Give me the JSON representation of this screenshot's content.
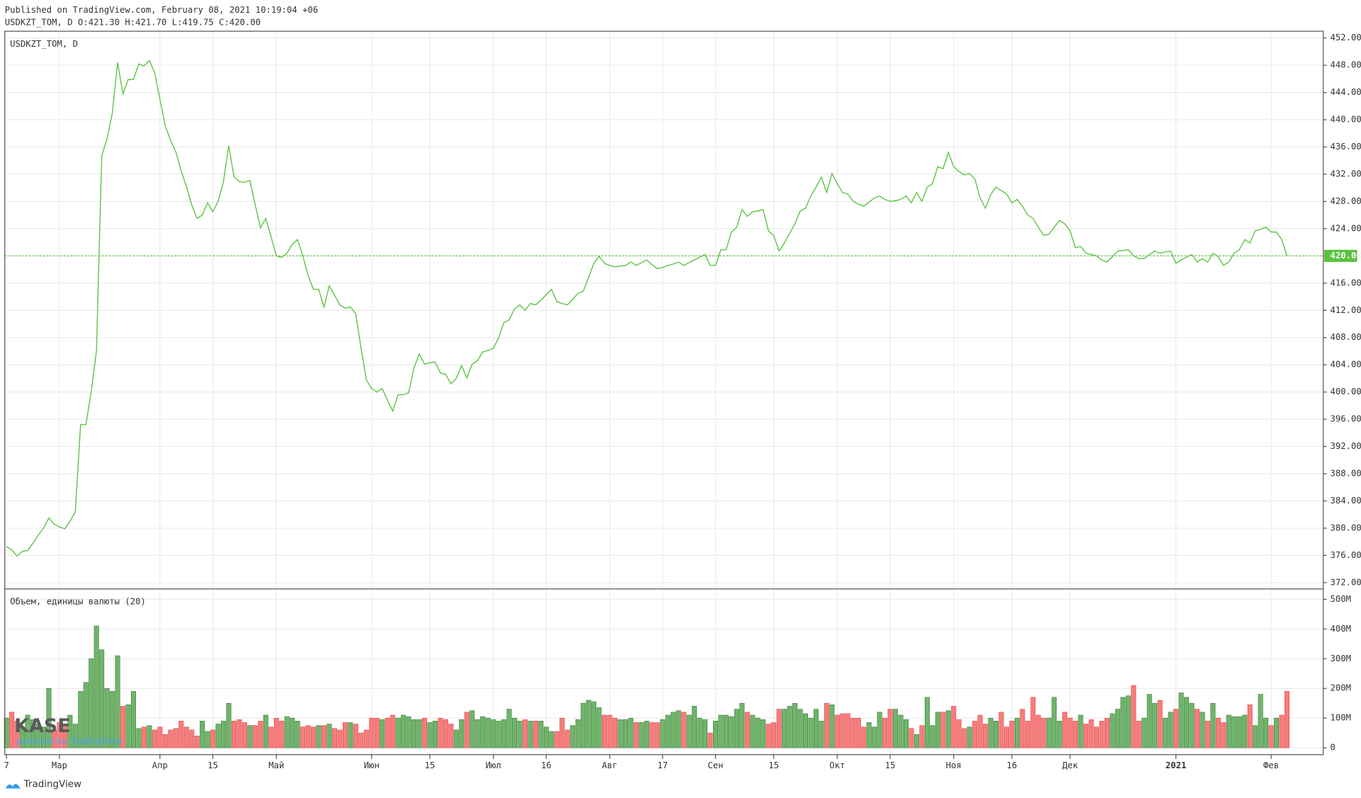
{
  "header": {
    "published": "Published on TradingView.com, February 08, 2021 10:19:04 +06",
    "ohlc": "USDKZT_TOM, D O:421.30 H:421.70 L:419.75 C:420.00"
  },
  "watermark": {
    "logo": "KASE",
    "powered": "powered by TradingView"
  },
  "footer": "TradingView",
  "chart_data": [
    {
      "type": "line",
      "legend": "USDKZT_TOM, D",
      "color": "#58c23f",
      "grid": true,
      "categories": [
        "7",
        null,
        null,
        null,
        null,
        null,
        null,
        null,
        null,
        null,
        "Мар",
        null,
        null,
        null,
        null,
        null,
        null,
        null,
        null,
        null,
        null,
        null,
        null,
        null,
        null,
        null,
        null,
        null,
        null,
        "Апр",
        null,
        null,
        null,
        null,
        null,
        null,
        null,
        null,
        null,
        "15",
        null,
        null,
        null,
        null,
        null,
        null,
        null,
        null,
        null,
        null,
        null,
        "Май",
        null,
        null,
        null,
        null,
        null,
        null,
        null,
        null,
        null,
        null,
        null,
        null,
        null,
        null,
        null,
        null,
        null,
        "Июн",
        null,
        null,
        null,
        null,
        null,
        null,
        null,
        null,
        null,
        null,
        "15",
        null,
        null,
        null,
        null,
        null,
        null,
        null,
        null,
        null,
        null,
        null,
        "Июл",
        null,
        null,
        null,
        null,
        null,
        null,
        null,
        null,
        null,
        "16",
        null,
        null,
        null,
        null,
        null,
        null,
        null,
        null,
        null,
        null,
        null,
        "Авг",
        null,
        null,
        null,
        null,
        null,
        null,
        null,
        null,
        null,
        "17",
        null,
        null,
        null,
        null,
        null,
        null,
        null,
        null,
        null,
        "Сен",
        null,
        null,
        null,
        null,
        null,
        null,
        null,
        null,
        null,
        null,
        "15",
        null,
        null,
        null,
        null,
        null,
        null,
        null,
        null,
        null,
        null,
        null,
        "Окт",
        null,
        null,
        null,
        null,
        null,
        null,
        null,
        null,
        null,
        "15",
        null,
        null,
        null,
        null,
        null,
        null,
        null,
        null,
        null,
        null,
        null,
        "Ноя",
        null,
        null,
        null,
        null,
        null,
        null,
        null,
        null,
        null,
        null,
        "16",
        null,
        null,
        null,
        null,
        null,
        null,
        null,
        null,
        null,
        null,
        "Дек",
        null,
        null,
        null,
        null,
        null,
        null,
        null,
        null,
        null,
        null,
        null,
        null,
        null,
        null,
        null,
        null,
        null,
        null,
        null,
        "2021",
        null,
        null,
        null,
        null,
        null,
        null,
        null,
        null,
        null,
        null,
        null,
        null,
        null,
        null,
        null,
        null,
        null,
        "Фев",
        null,
        null,
        null
      ],
      "values": [
        377.3,
        376.8,
        375.9,
        376.6,
        376.7,
        377.8,
        379,
        380,
        381.5,
        380.6,
        380.2,
        379.9,
        381,
        382.4,
        395.2,
        395.2,
        400,
        406,
        434.7,
        437.2,
        441,
        448.4,
        443.8,
        445.9,
        445.9,
        448.2,
        447.9,
        448.7,
        446.9,
        443,
        439.1,
        437,
        435.3,
        432.5,
        430.2,
        427.5,
        425.5,
        426,
        427.8,
        426.5,
        428,
        430.9,
        436.2,
        431.6,
        430.9,
        430.8,
        431.1,
        427.5,
        424.1,
        425.5,
        422.8,
        420,
        419.8,
        420.4,
        421.7,
        422.4,
        420,
        417.1,
        415.1,
        415.1,
        412.5,
        415.6,
        414.2,
        412.8,
        412.3,
        412.5,
        411.5,
        406.5,
        401.8,
        400.5,
        400,
        400.5,
        398.8,
        397.2,
        399.6,
        399.6,
        399.9,
        403.5,
        405.6,
        404.1,
        404.3,
        404.4,
        402.8,
        402.6,
        401.2,
        402,
        403.9,
        402.1,
        404.1,
        404.6,
        405.9,
        406.1,
        406.4,
        408,
        410.2,
        410.6,
        412.2,
        412.8,
        412,
        413,
        412.8,
        413.5,
        414.3,
        415.1,
        413.3,
        413,
        412.8,
        413.6,
        414.5,
        414.8,
        416.8,
        418.9,
        419.9,
        418.9,
        418.6,
        418.4,
        418.5,
        418.6,
        419.1,
        418.6,
        419,
        419.4,
        418.7,
        418.1,
        418.3,
        418.6,
        418.8,
        419.1,
        418.6,
        419,
        419.4,
        419.8,
        420.2,
        418.6,
        418.6,
        420.9,
        420.9,
        423.5,
        424.2,
        426.8,
        425.8,
        426.5,
        426.6,
        426.8,
        423.7,
        423,
        420.7,
        421.9,
        423.3,
        424.7,
        426.6,
        427,
        428.8,
        430.1,
        431.6,
        429.3,
        432.1,
        430.6,
        429.3,
        429.1,
        428,
        427.6,
        427.3,
        427.9,
        428.5,
        428.8,
        428.3,
        428,
        428.1,
        428.3,
        428.8,
        427.8,
        429.3,
        428,
        430.1,
        430.6,
        433.1,
        432.8,
        435.2,
        433.1,
        432.4,
        431.9,
        432.1,
        431.3,
        428.5,
        427,
        429,
        430.1,
        429.6,
        429.1,
        427.8,
        428.3,
        427.3,
        426,
        425.5,
        424.2,
        423,
        423.2,
        424.2,
        425.2,
        424.7,
        423.7,
        421.2,
        421.4,
        420.4,
        420.2,
        420,
        419.4,
        419.1,
        419.9,
        420.7,
        420.8,
        420.9,
        420,
        419.6,
        419.6,
        420.2,
        420.7,
        420.4,
        420.6,
        420.7,
        418.9,
        419.4,
        419.8,
        420.2,
        419.1,
        419.6,
        419.1,
        420.4,
        419.9,
        418.6,
        419.1,
        420.4,
        420.9,
        422.4,
        421.9,
        423.7,
        423.9,
        424.2,
        423.5,
        423.5,
        422.4,
        420
      ],
      "last_price": {
        "value": 420,
        "label": "420.00"
      },
      "ylim": [
        371.2,
        453
      ],
      "yticks": [
        {
          "value": 372,
          "label": "372.00"
        },
        {
          "value": 376,
          "label": "376.00"
        },
        {
          "value": 380,
          "label": "380.00"
        },
        {
          "value": 384,
          "label": "384.00"
        },
        {
          "value": 388,
          "label": "388.00"
        },
        {
          "value": 392,
          "label": "392.00"
        },
        {
          "value": 396,
          "label": "396.00"
        },
        {
          "value": 400,
          "label": "400.00"
        },
        {
          "value": 404,
          "label": "404.00"
        },
        {
          "value": 408,
          "label": "408.00"
        },
        {
          "value": 412,
          "label": "412.00"
        },
        {
          "value": 416,
          "label": "416.00"
        },
        {
          "value": 420,
          "label": "420.00"
        },
        {
          "value": 424,
          "label": "424.00"
        },
        {
          "value": 428,
          "label": "428.00"
        },
        {
          "value": 432,
          "label": "432.00"
        },
        {
          "value": 436,
          "label": "436.00"
        },
        {
          "value": 440,
          "label": "440.00"
        },
        {
          "value": 444,
          "label": "444.00"
        },
        {
          "value": 448,
          "label": "448.00"
        },
        {
          "value": 452,
          "label": "452.00"
        }
      ]
    },
    {
      "type": "bar",
      "legend": "Объем, единицы валюты (20)",
      "up_color": "#6fb56a",
      "down_color": "#f77c7c",
      "grid": true,
      "values": [
        100,
        120,
        90,
        70,
        110,
        95,
        80,
        70,
        200,
        60,
        85,
        75,
        110,
        80,
        190,
        220,
        300,
        410,
        330,
        200,
        190,
        310,
        140,
        145,
        190,
        65,
        70,
        75,
        60,
        70,
        45,
        60,
        65,
        90,
        70,
        60,
        40,
        90,
        55,
        60,
        80,
        90,
        150,
        90,
        95,
        85,
        75,
        75,
        90,
        110,
        70,
        100,
        90,
        105,
        100,
        90,
        70,
        75,
        70,
        75,
        75,
        80,
        65,
        60,
        85,
        85,
        80,
        50,
        60,
        100,
        100,
        95,
        100,
        110,
        100,
        110,
        105,
        95,
        95,
        100,
        85,
        90,
        100,
        95,
        80,
        60,
        95,
        120,
        125,
        95,
        105,
        100,
        95,
        90,
        95,
        130,
        100,
        90,
        95,
        90,
        90,
        90,
        70,
        55,
        55,
        100,
        60,
        75,
        95,
        150,
        160,
        155,
        135,
        110,
        110,
        100,
        95,
        95,
        100,
        85,
        85,
        90,
        85,
        85,
        95,
        110,
        120,
        125,
        120,
        110,
        140,
        100,
        95,
        50,
        90,
        110,
        110,
        105,
        130,
        150,
        120,
        110,
        100,
        95,
        80,
        85,
        130,
        130,
        140,
        150,
        130,
        115,
        100,
        130,
        90,
        150,
        145,
        110,
        115,
        115,
        100,
        100,
        70,
        85,
        70,
        120,
        100,
        130,
        130,
        110,
        95,
        65,
        45,
        75,
        170,
        75,
        120,
        120,
        125,
        140,
        95,
        65,
        70,
        90,
        110,
        80,
        100,
        90,
        120,
        70,
        90,
        100,
        130,
        90,
        170,
        110,
        100,
        100,
        170,
        90,
        120,
        100,
        90,
        110,
        80,
        95,
        70,
        90,
        100,
        115,
        130,
        170,
        175,
        210,
        90,
        100,
        180,
        150,
        160,
        100,
        120,
        130,
        185,
        170,
        150,
        130,
        120,
        90,
        150,
        100,
        85,
        110,
        105,
        105,
        110,
        145,
        75,
        180,
        100,
        75,
        100,
        110,
        190
      ],
      "ylim": [
        -23,
        529
      ],
      "yticks": [
        0,
        {
          "value": 100,
          "label": "100M"
        },
        {
          "value": 200,
          "label": "200M"
        },
        {
          "value": 300,
          "label": "300M"
        },
        {
          "value": 400,
          "label": "400M"
        },
        {
          "value": 500,
          "label": "500M"
        }
      ]
    }
  ]
}
